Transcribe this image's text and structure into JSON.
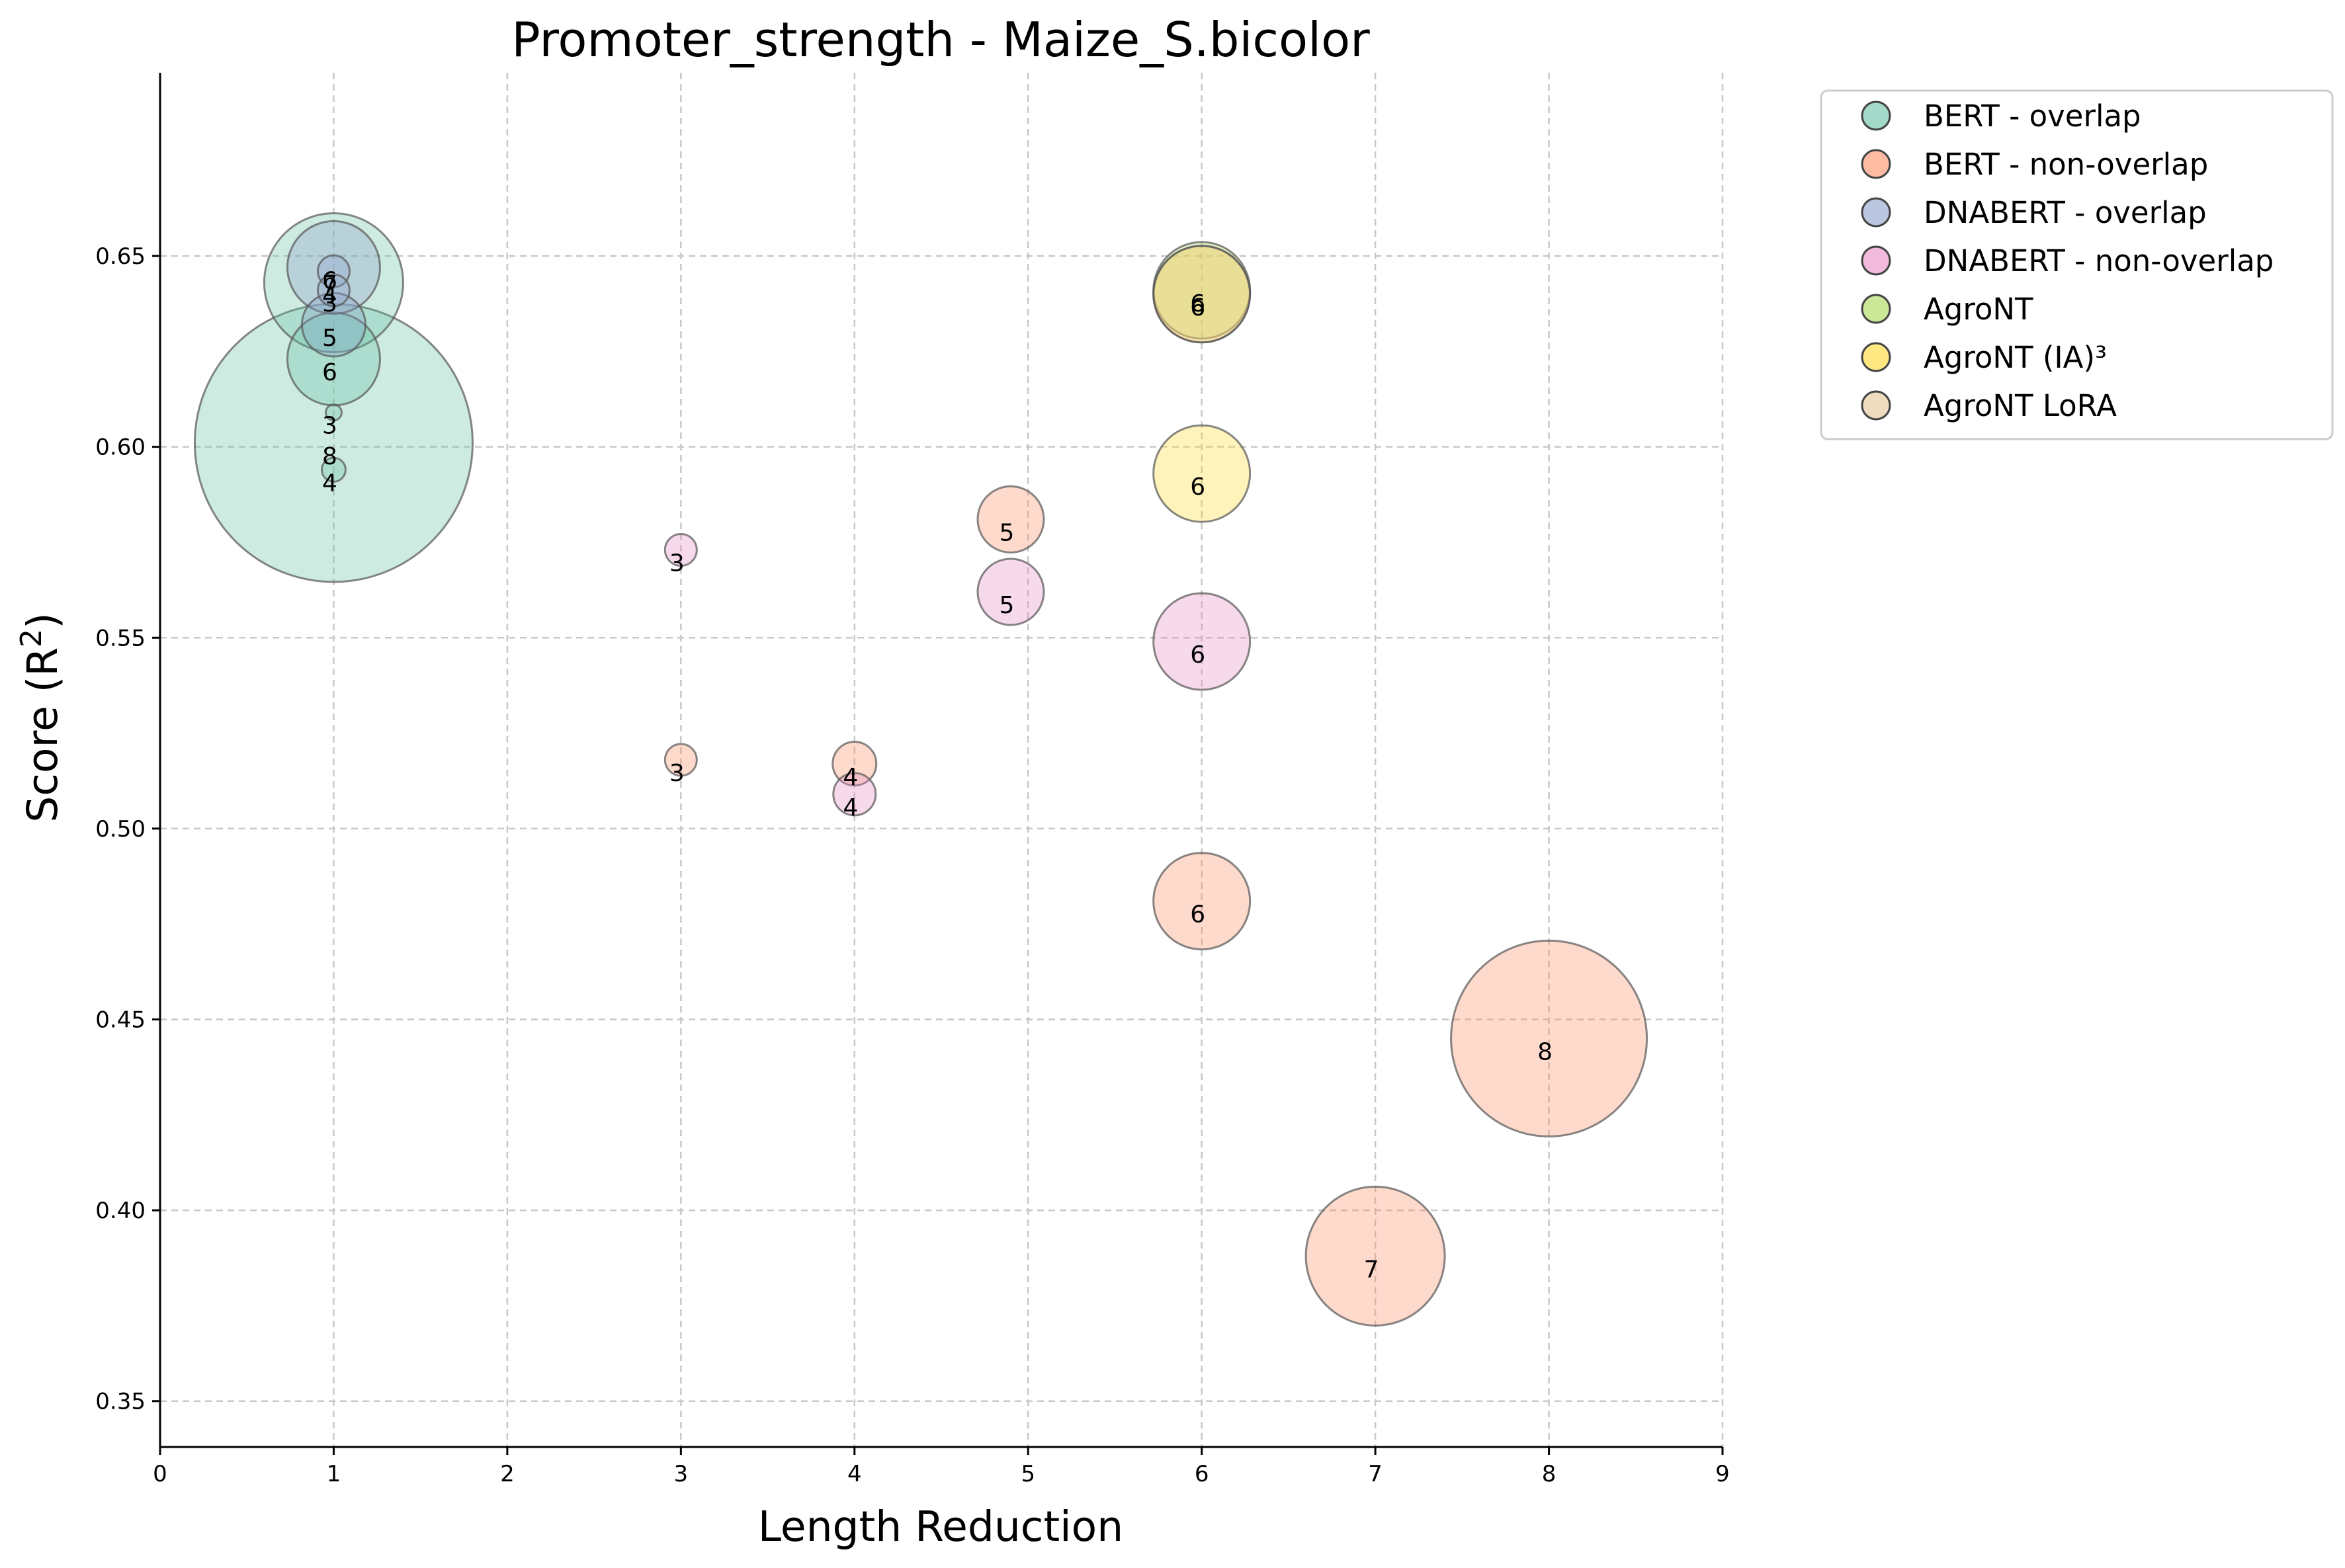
{
  "chart_data": {
    "type": "scatter",
    "title": "Promoter_strength - Maize_S.bicolor",
    "xlabel": "Length Reduction",
    "ylabel_base": "Score (R",
    "ylabel_sup": "2",
    "ylabel_close": ")",
    "xlim": [
      0,
      9
    ],
    "ylim": [
      0.338,
      0.698
    ],
    "x_ticks": [
      "0",
      "1",
      "2",
      "3",
      "4",
      "5",
      "6",
      "7",
      "8",
      "9"
    ],
    "y_ticks": [
      "0.35",
      "0.40",
      "0.45",
      "0.50",
      "0.55",
      "0.60",
      "0.65"
    ],
    "grid": true,
    "legend_position": "outside-upper-right",
    "series": [
      {
        "name": "BERT - overlap",
        "color": "#66c2a5",
        "points": [
          {
            "x": 1,
            "y": 0.601,
            "label": "8",
            "size": 210
          },
          {
            "x": 1,
            "y": 0.643,
            "label": "4",
            "size": 105
          },
          {
            "x": 1,
            "y": 0.623,
            "label": "6",
            "size": 70
          },
          {
            "x": 1,
            "y": 0.594,
            "label": "4",
            "size": 18
          },
          {
            "x": 1,
            "y": 0.609,
            "label": "3",
            "size": 12
          }
        ]
      },
      {
        "name": "BERT - non-overlap",
        "color": "#fc8d62",
        "points": [
          {
            "x": 8,
            "y": 0.445,
            "label": "8",
            "size": 148
          },
          {
            "x": 7,
            "y": 0.388,
            "label": "7",
            "size": 105
          },
          {
            "x": 6,
            "y": 0.481,
            "label": "6",
            "size": 73
          },
          {
            "x": 4.9,
            "y": 0.581,
            "label": "5",
            "size": 50
          },
          {
            "x": 4,
            "y": 0.517,
            "label": "4",
            "size": 33
          },
          {
            "x": 3,
            "y": 0.518,
            "label": "3",
            "size": 24
          }
        ]
      },
      {
        "name": "DNABERT - overlap",
        "color": "#8da0cb",
        "points": [
          {
            "x": 1,
            "y": 0.647,
            "label": "6",
            "size": 70
          },
          {
            "x": 1,
            "y": 0.646,
            "label": "7",
            "size": 24
          },
          {
            "x": 1,
            "y": 0.641,
            "label": "3",
            "size": 24
          },
          {
            "x": 1,
            "y": 0.632,
            "label": "5",
            "size": 48
          }
        ]
      },
      {
        "name": "DNABERT - non-overlap",
        "color": "#e78ac3",
        "points": [
          {
            "x": 6,
            "y": 0.549,
            "label": "6",
            "size": 73
          },
          {
            "x": 4.9,
            "y": 0.562,
            "label": "5",
            "size": 50
          },
          {
            "x": 4,
            "y": 0.509,
            "label": "4",
            "size": 32
          },
          {
            "x": 3,
            "y": 0.573,
            "label": "3",
            "size": 24
          }
        ]
      },
      {
        "name": "AgroNT",
        "color": "#a6d854",
        "points": [
          {
            "x": 6,
            "y": 0.641,
            "label": "6",
            "size": 73
          }
        ]
      },
      {
        "name": "AgroNT (IA)³",
        "color": "#ffd92f",
        "points": [
          {
            "x": 6,
            "y": 0.593,
            "label": "6",
            "size": 73
          },
          {
            "x": 6,
            "y": 0.64,
            "label": "6",
            "size": 73
          }
        ]
      },
      {
        "name": "AgroNT LoRA",
        "color": "#e5c494",
        "points": [
          {
            "x": 6,
            "y": 0.64,
            "label": "6",
            "size": 73
          }
        ]
      }
    ]
  }
}
